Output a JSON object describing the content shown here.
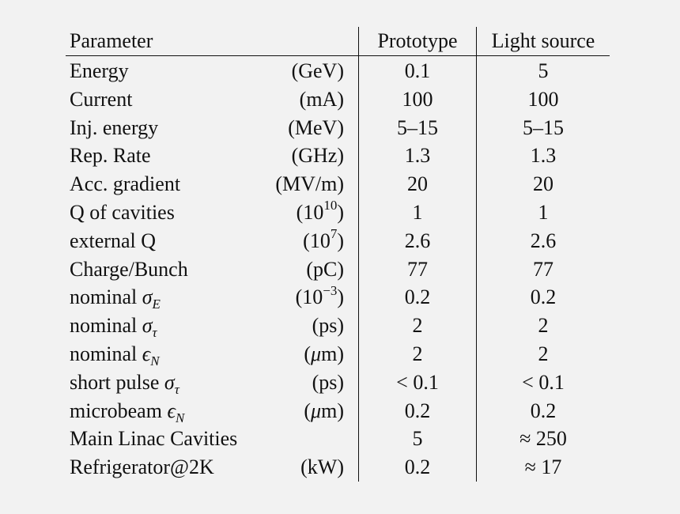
{
  "table": {
    "headers": {
      "parameter": "Parameter",
      "prototype": "Prototype",
      "light_source": "Light source"
    },
    "rows": [
      {
        "name": "Energy",
        "unit": "(GeV)",
        "prototype": "0.1",
        "light_source": "5"
      },
      {
        "name": "Current",
        "unit": "(mA)",
        "prototype": "100",
        "light_source": "100"
      },
      {
        "name": "Inj. energy",
        "unit": "(MeV)",
        "prototype": "5–15",
        "light_source": "5–15"
      },
      {
        "name": "Rep. Rate",
        "unit": "(GHz)",
        "prototype": "1.3",
        "light_source": "1.3"
      },
      {
        "name": "Acc. gradient",
        "unit": "(MV/m)",
        "prototype": "20",
        "light_source": "20"
      },
      {
        "name": "Q of cavities",
        "unit_base": "10",
        "unit_exp": "10",
        "prototype": "1",
        "light_source": "1"
      },
      {
        "name": "external Q",
        "unit_base": "10",
        "unit_exp": "7",
        "prototype": "2.6",
        "light_source": "2.6"
      },
      {
        "name": "Charge/Bunch",
        "unit": "(pC)",
        "prototype": "77",
        "light_source": "77"
      },
      {
        "name": "nominal",
        "symbol": "σ",
        "subscript": "E",
        "unit_base": "10",
        "unit_exp": "−3",
        "prototype": "0.2",
        "light_source": "0.2"
      },
      {
        "name": "nominal",
        "symbol": "σ",
        "subscript": "τ",
        "unit": "(ps)",
        "prototype": "2",
        "light_source": "2"
      },
      {
        "name": "nominal",
        "symbol": "ϵ",
        "subscript": "N",
        "unit_mu": "μ",
        "unit_rest": "m)",
        "prototype": "2",
        "light_source": "2"
      },
      {
        "name": "short pulse",
        "symbol": "σ",
        "subscript": "τ",
        "unit": "(ps)",
        "prototype": "< 0.1",
        "light_source": "< 0.1"
      },
      {
        "name": "microbeam",
        "symbol": "ϵ",
        "subscript": "N",
        "unit_mu": "μ",
        "unit_rest": "m)",
        "prototype": "0.2",
        "light_source": "0.2"
      },
      {
        "name": "Main Linac Cavities",
        "unit": "",
        "prototype": "5",
        "light_source": "≈ 250"
      },
      {
        "name": "Refrigerator@2K",
        "unit": "(kW)",
        "prototype": "0.2",
        "light_source": "≈ 17"
      }
    ]
  }
}
